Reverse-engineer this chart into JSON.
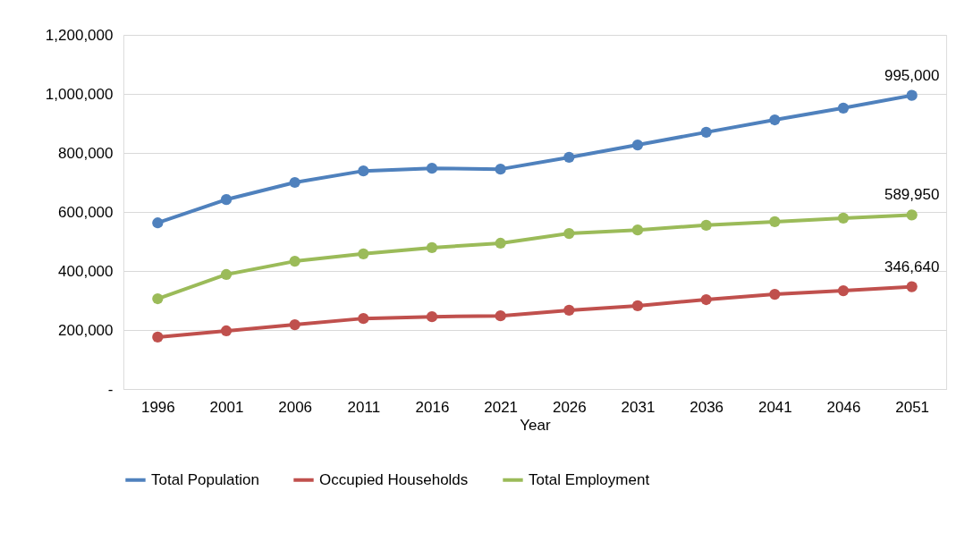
{
  "chart_data": {
    "type": "line",
    "xlabel": "Year",
    "categories": [
      "1996",
      "2001",
      "2006",
      "2011",
      "2016",
      "2021",
      "2026",
      "2031",
      "2036",
      "2041",
      "2046",
      "2051"
    ],
    "series": [
      {
        "name": "Total Population",
        "color": "#4f81bd",
        "values": [
          563000,
          642000,
          700000,
          739000,
          748000,
          745000,
          785000,
          827000,
          870000,
          912000,
          952000,
          995000
        ],
        "value_labels": [
          null,
          null,
          null,
          null,
          null,
          null,
          null,
          null,
          null,
          null,
          null,
          "995,000"
        ]
      },
      {
        "name": "Occupied Households",
        "color": "#c0504d",
        "values": [
          176000,
          197000,
          218000,
          239000,
          245000,
          248000,
          267000,
          282000,
          303000,
          321000,
          333000,
          346640
        ],
        "value_labels": [
          null,
          null,
          null,
          null,
          null,
          null,
          null,
          null,
          null,
          null,
          null,
          "346,640"
        ]
      },
      {
        "name": "Total Employment",
        "color": "#9bbb59",
        "values": [
          306000,
          388000,
          433000,
          458000,
          479000,
          494000,
          527000,
          539000,
          555000,
          567000,
          579000,
          589950
        ],
        "value_labels": [
          null,
          null,
          null,
          null,
          null,
          null,
          null,
          null,
          null,
          null,
          null,
          "589,950"
        ]
      }
    ],
    "ylim": [
      0,
      1200000
    ],
    "yticks": [
      {
        "value": 0,
        "label": "-"
      },
      {
        "value": 200000,
        "label": "200,000"
      },
      {
        "value": 400000,
        "label": "400,000"
      },
      {
        "value": 600000,
        "label": "600,000"
      },
      {
        "value": 800000,
        "label": "800,000"
      },
      {
        "value": 1000000,
        "label": "1,000,000"
      },
      {
        "value": 1200000,
        "label": "1,200,000"
      }
    ],
    "grid": "y",
    "legend": "bottom",
    "marker": "circle",
    "line_style": "solid"
  }
}
